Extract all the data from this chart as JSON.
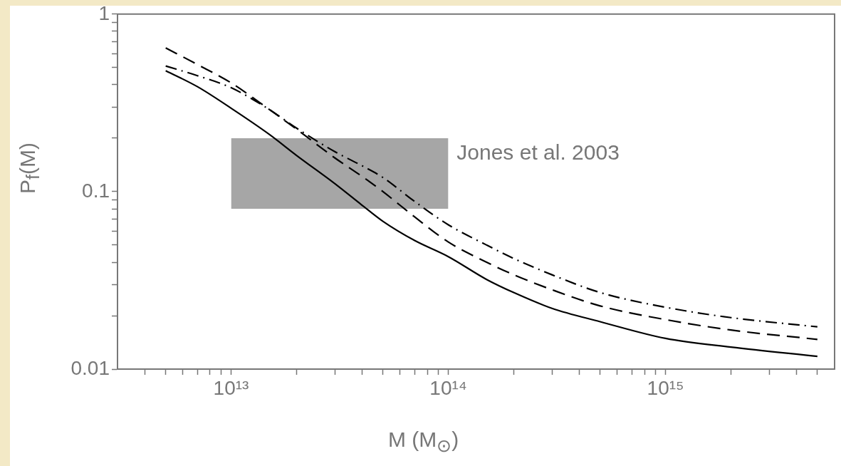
{
  "chart_data": {
    "type": "line",
    "xlabel": "M (M$_{⊙}$)",
    "ylabel": "P$_{f}$(M)",
    "log": "xy",
    "x": [
      5000000000000.0,
      7000000000000.0,
      10000000000000.0,
      15000000000000.0,
      20000000000000.0,
      30000000000000.0,
      40000000000000.0,
      50000000000000.0,
      70000000000000.0,
      100000000000000.0,
      150000000000000.0,
      200000000000000.0,
      300000000000000.0,
      500000000000000.0,
      1000000000000000.0,
      2000000000000000.0,
      5000000000000000.0
    ],
    "series": [
      {
        "color": "#000000",
        "line_style": "solid",
        "values": [
          0.48,
          0.39,
          0.295,
          0.21,
          0.16,
          0.111,
          0.084,
          0.068,
          0.053,
          0.043,
          0.032,
          0.027,
          0.022,
          0.0185,
          0.0149,
          0.0133,
          0.0118
        ]
      },
      {
        "color": "#000000",
        "line_style": "dashed",
        "values": [
          0.645,
          0.52,
          0.41,
          0.29,
          0.225,
          0.155,
          0.122,
          0.1,
          0.072,
          0.052,
          0.04,
          0.034,
          0.028,
          0.0227,
          0.019,
          0.0166,
          0.0147
        ]
      },
      {
        "color": "#000000",
        "line_style": "dashdot",
        "values": [
          0.51,
          0.45,
          0.385,
          0.29,
          0.228,
          0.168,
          0.14,
          0.12,
          0.088,
          0.065,
          0.05,
          0.042,
          0.034,
          0.027,
          0.0223,
          0.0195,
          0.0173
        ]
      },
      {
        "type": "area",
        "color": "#a6a6a6",
        "x": [
          10000000000000.0,
          100000000000000.0
        ],
        "values": [
          null,
          null
        ],
        "lower": [
          0.08,
          0.08
        ],
        "upper": [
          0.2,
          0.2
        ]
      }
    ],
    "annotations": [
      "Jones et al. 2003"
    ],
    "xlim": [
      3000000000000.0,
      6000000000000000.0
    ],
    "xticks": [
      {
        "value": 4000000000000.0,
        "label": null
      },
      {
        "value": 5000000000000.0,
        "label": null
      },
      {
        "value": 6000000000000.0,
        "label": null
      },
      {
        "value": 7000000000000.0,
        "label": null
      },
      {
        "value": 8000000000000.0,
        "label": null
      },
      {
        "value": 9000000000000.0,
        "label": null
      },
      {
        "value": 10000000000000.0,
        "label": "10¹³"
      },
      {
        "value": 20000000000000.0,
        "label": null
      },
      {
        "value": 30000000000000.0,
        "label": null
      },
      {
        "value": 40000000000000.0,
        "label": null
      },
      {
        "value": 50000000000000.0,
        "label": null
      },
      {
        "value": 60000000000000.0,
        "label": null
      },
      {
        "value": 70000000000000.0,
        "label": null
      },
      {
        "value": 80000000000000.0,
        "label": null
      },
      {
        "value": 90000000000000.0,
        "label": null
      },
      {
        "value": 100000000000000.0,
        "label": "10¹⁴"
      },
      {
        "value": 200000000000000.0,
        "label": null
      },
      {
        "value": 300000000000000.0,
        "label": null
      },
      {
        "value": 400000000000000.0,
        "label": null
      },
      {
        "value": 500000000000000.0,
        "label": null
      },
      {
        "value": 600000000000000.0,
        "label": null
      },
      {
        "value": 700000000000000.0,
        "label": null
      },
      {
        "value": 800000000000000.0,
        "label": null
      },
      {
        "value": 900000000000000.0,
        "label": null
      },
      {
        "value": 1000000000000000.0,
        "label": "10¹⁵"
      },
      {
        "value": 2000000000000000.0,
        "label": null
      },
      {
        "value": 3000000000000000.0,
        "label": null
      },
      {
        "value": 4000000000000000.0,
        "label": null
      },
      {
        "value": 5000000000000000.0,
        "label": null
      }
    ],
    "ylim": [
      0.01,
      1
    ],
    "yticks": [
      0.01,
      {
        "value": 0.02,
        "label": null
      },
      {
        "value": 0.03,
        "label": null
      },
      {
        "value": 0.04,
        "label": null
      },
      {
        "value": 0.05,
        "label": null
      },
      {
        "value": 0.06,
        "label": null
      },
      {
        "value": 0.07,
        "label": null
      },
      {
        "value": 0.08,
        "label": null
      },
      {
        "value": 0.09,
        "label": null
      },
      0.1,
      {
        "value": 0.2,
        "label": null
      },
      {
        "value": 0.3,
        "label": null
      },
      {
        "value": 0.4,
        "label": null
      },
      {
        "value": 0.5,
        "label": null
      },
      {
        "value": 0.6,
        "label": null
      },
      {
        "value": 0.7,
        "label": null
      },
      {
        "value": 0.8,
        "label": null
      },
      {
        "value": 0.9,
        "label": null
      },
      1
    ]
  }
}
